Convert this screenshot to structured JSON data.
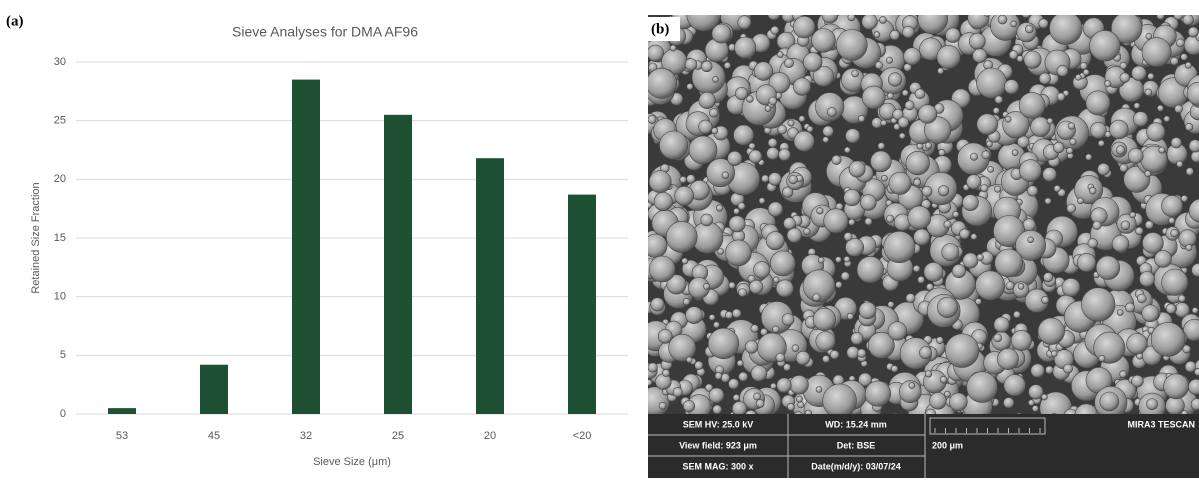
{
  "chart_data": {
    "type": "bar",
    "title": "Sieve Analyses for DMA AF96",
    "x_label": "Sieve Size (μm)",
    "y_label": "Retained Size Fraction",
    "categories": [
      "53",
      "45",
      "32",
      "25",
      "20",
      "<20"
    ],
    "values": [
      0.5,
      4.2,
      28.5,
      25.5,
      21.8,
      18.7
    ],
    "color": "#1e5033",
    "ylim": [
      0,
      30
    ],
    "yticks": [
      0,
      5,
      10,
      15,
      20,
      25,
      30
    ],
    "grid": true
  },
  "panel_labels": [
    "(a)",
    "(b)"
  ],
  "sem_info": {
    "hv": "SEM HV: 25.0 kV",
    "wd": "WD: 15.24 mm",
    "brand": "MIRA3 TESCAN",
    "view_field": "View field: 923 μm",
    "det": "Det: BSE",
    "scale": "200 μm",
    "mag": "SEM MAG: 300 x",
    "date": "Date(m/d/y): 03/07/24"
  }
}
